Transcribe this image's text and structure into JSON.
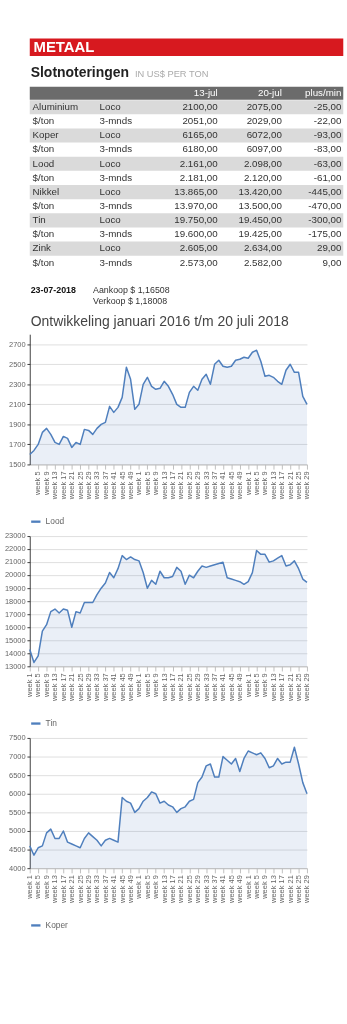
{
  "chart_data": [
    {
      "type": "other",
      "title": "Slotnoteringen",
      "subtitle": "IN US$ PER TON",
      "annotations": [
        "METAAL",
        "13-jul",
        "20-jul",
        "plus/min",
        "Aluminium",
        "Loco",
        "2100,00",
        "2075,00",
        "-25,00",
        "$/ton",
        "3-mnds",
        "2051,00",
        "2029,00",
        "-22,00",
        "Koper",
        "Loco",
        "6165,00",
        "6072,00",
        "-93,00",
        "$/ton",
        "3-mnds",
        "6180,00",
        "6097,00",
        "-83,00",
        "Lood",
        "Loco",
        "2.161,00",
        "2.098,00",
        "-63,00",
        "$/ton",
        "3-mnds",
        "2.181,00",
        "2.120,00",
        "-61,00",
        "Nikkel",
        "Loco",
        "13.865,00",
        "13.420,00",
        "-445,00",
        "$/ton",
        "3-mnds",
        "13.970,00",
        "13.500,00",
        "-470,00",
        "Tin",
        "Loco",
        "19.750,00",
        "19.450,00",
        "-300,00",
        "$/ton",
        "3-mnds",
        "19.600,00",
        "19.425,00",
        "-175,00",
        "Zink",
        "Loco",
        "2.605,00",
        "2.634,00",
        "29,00",
        "$/ton",
        "3-mnds",
        "2.573,00",
        "2.582,00",
        "9,00",
        "23-07-2018",
        "Aankoop $  1,16508",
        "Verkoop $  1,18008",
        "Ontwikkeling januari 2016 t/m 20 juli 2018"
      ]
    },
    {
      "type": "area",
      "categories": [
        null,
        null,
        "week 5",
        null,
        "week 9",
        null,
        "week 13",
        null,
        "week 17",
        null,
        "week 21",
        null,
        "week 25",
        null,
        "week 29",
        null,
        "week 33",
        null,
        "week 37",
        null,
        "week 41",
        null,
        "week 45",
        null,
        "week 49",
        null,
        "week 1",
        null,
        "week 5",
        null,
        "week 9",
        null,
        "week 13",
        null,
        "week 17",
        null,
        "week 21",
        null,
        "week 25",
        null,
        "week 29",
        null,
        "week 33",
        null,
        "week 37",
        null,
        "week 41",
        null,
        "week 45",
        null,
        "week 49",
        null,
        "week 1",
        null,
        "week 5",
        null,
        "week 9",
        null,
        "week 13",
        null,
        "week 17",
        null,
        "week 21",
        null,
        "week 25",
        null,
        "week 29"
      ],
      "series": [
        {
          "name": "Lood",
          "color": "#4f7fbd",
          "values": [
            1600,
            1640,
            1700,
            1820,
            1860,
            1800,
            1720,
            1700,
            1780,
            1760,
            1670,
            1720,
            1700,
            1850,
            1840,
            1800,
            1860,
            1900,
            1920,
            2080,
            2020,
            2070,
            2170,
            2470,
            2350,
            2050,
            2100,
            2300,
            2370,
            2280,
            2250,
            2260,
            2330,
            2280,
            2200,
            2100,
            2070,
            2070,
            2220,
            2280,
            2240,
            2350,
            2400,
            2300,
            2500,
            2540,
            2480,
            2470,
            2480,
            2540,
            2550,
            2570,
            2560,
            2620,
            2640,
            2530,
            2380,
            2390,
            2370,
            2330,
            2300,
            2440,
            2500,
            2420,
            2420,
            2180,
            2100
          ]
        }
      ],
      "ylim": [
        1500,
        2800
      ],
      "yticks": [
        1500,
        1700,
        1900,
        2100,
        2300,
        2500,
        2700
      ],
      "grid": "y",
      "legend": "bottom"
    },
    {
      "type": "area",
      "categories": [
        "week 1",
        null,
        "week 5",
        null,
        "week 9",
        null,
        "week 13",
        null,
        "week 17",
        null,
        "week 21",
        null,
        "week 25",
        null,
        "week 29",
        null,
        "week 33",
        null,
        "week 37",
        null,
        "week 41",
        null,
        "week 45",
        null,
        "week 49",
        null,
        "week 1",
        null,
        "week 5",
        null,
        "week 9",
        null,
        "week 13",
        null,
        "week 17",
        null,
        "week 21",
        null,
        "week 25",
        null,
        "week 29",
        null,
        "week 33",
        null,
        "week 37",
        null,
        "week 41",
        null,
        "week 45",
        null,
        "week 49",
        null,
        "week 1",
        null,
        "week 5",
        null,
        "week 9",
        null,
        "week 13",
        null,
        "week 17",
        null,
        "week 21",
        null,
        "week 25",
        null,
        "week 29"
      ],
      "series": [
        {
          "name": "Tin",
          "color": "#4f7fbd",
          "values": [
            14300,
            13300,
            13800,
            15700,
            16200,
            17200,
            17400,
            17100,
            17400,
            17300,
            16000,
            17200,
            17100,
            17900,
            17900,
            17900,
            18500,
            19000,
            19400,
            20200,
            19800,
            20500,
            21500,
            21200,
            21400,
            21200,
            21100,
            20200,
            19000,
            19600,
            19300,
            20300,
            19800,
            19800,
            19900,
            20600,
            20300,
            19300,
            20000,
            19800,
            20300,
            20700,
            20600,
            20700,
            20800,
            20900,
            21000,
            19800,
            19700,
            19600,
            19500,
            19300,
            19500,
            20200,
            21900,
            21600,
            21600,
            21000,
            21100,
            21300,
            21500,
            20700,
            20800,
            21100,
            20500,
            19700,
            19450
          ]
        }
      ],
      "ylim": [
        13000,
        23000
      ],
      "yticks": [
        13000,
        14000,
        15000,
        16000,
        17000,
        18000,
        19000,
        20000,
        21000,
        22000,
        23000
      ],
      "grid": "y",
      "legend": "bottom"
    },
    {
      "type": "area",
      "categories": [
        "week 1",
        null,
        "week 5",
        null,
        "week 9",
        null,
        "week 13",
        null,
        "week 17",
        null,
        "week 21",
        null,
        "week 25",
        null,
        "week 29",
        null,
        "week 33",
        null,
        "week 37",
        null,
        "week 41",
        null,
        "week 45",
        null,
        "week 49",
        null,
        "week 1",
        null,
        "week 5",
        null,
        "week 9",
        null,
        "week 13",
        null,
        "week 17",
        null,
        "week 21",
        null,
        "week 25",
        null,
        "week 29",
        null,
        "week 33",
        null,
        "week 37",
        null,
        "week 41",
        null,
        "week 45",
        null,
        "week 49",
        null,
        "week 1",
        null,
        "week 5",
        null,
        "week 9",
        null,
        "week 13",
        null,
        "week 17",
        null,
        "week 21",
        null,
        "week 25",
        null,
        "week 29"
      ],
      "series": [
        {
          "name": "Koper",
          "color": "#4f7fbd",
          "values": [
            4600,
            4350,
            4550,
            4600,
            4950,
            5050,
            4800,
            4800,
            5000,
            4700,
            4650,
            4600,
            4550,
            4800,
            4950,
            4850,
            4750,
            4600,
            4750,
            4800,
            4750,
            4700,
            5900,
            5800,
            5750,
            5500,
            5600,
            5800,
            5900,
            6050,
            6000,
            5750,
            5800,
            5700,
            5650,
            5500,
            5600,
            5650,
            5800,
            5850,
            6300,
            6450,
            6750,
            6800,
            6450,
            6450,
            7000,
            6900,
            6800,
            6950,
            6600,
            6950,
            7150,
            7100,
            7050,
            7100,
            6950,
            6700,
            6750,
            6950,
            6800,
            6850,
            6850,
            7250,
            6800,
            6300,
            6000
          ]
        }
      ],
      "ylim": [
        4000,
        7500
      ],
      "yticks": [
        4000,
        4500,
        5000,
        5500,
        6000,
        6500,
        7000,
        7500
      ],
      "grid": "y",
      "legend": "bottom"
    }
  ]
}
